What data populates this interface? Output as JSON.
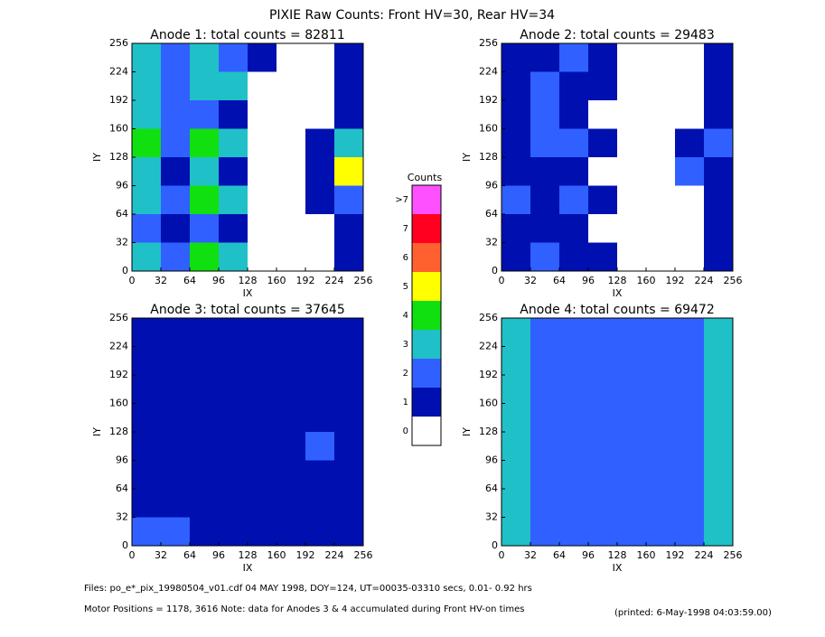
{
  "title": "PIXIE Raw Counts:  Front HV=30, Rear HV=34",
  "colorbar": {
    "label": "Counts",
    "ticks": [
      0,
      1,
      2,
      3,
      4,
      5,
      6,
      7,
      {
        "value": 8,
        "label": ">7"
      }
    ],
    "colors": [
      "#ffffff",
      "#0010b0",
      "#3060ff",
      "#20c0c8",
      "#10e010",
      "#ffff00",
      "#ff6030",
      "#ff0020",
      "#ff50ff"
    ]
  },
  "footer": {
    "files": "Files: po_e*_pix_19980504_v01.cdf    04 MAY 1998, DOY=124, UT=00035-03310 secs,  0.01- 0.92 hrs",
    "motor": "Motor Positions = 1178, 3616   Note: data for Anodes 3 & 4 accumulated during Front HV-on times",
    "printed": "(printed:  6-May-1998 04:03:59.00)"
  },
  "chart_data": [
    {
      "type": "heatmap",
      "title": "Anode 1: total counts = 82811",
      "x_label": "IX",
      "y_label": "IY",
      "xlim": [
        0,
        256
      ],
      "ylim": [
        0,
        256
      ],
      "xticks": [
        0,
        32,
        64,
        96,
        128,
        160,
        192,
        224,
        256
      ],
      "yticks": [
        0,
        32,
        64,
        96,
        128,
        160,
        192,
        224,
        256
      ],
      "z": [
        [
          3,
          2,
          4,
          3,
          0,
          0,
          0,
          1
        ],
        [
          2,
          1,
          2,
          1,
          0,
          0,
          0,
          1
        ],
        [
          3,
          2,
          4,
          3,
          0,
          0,
          1,
          2
        ],
        [
          3,
          1,
          3,
          1,
          0,
          0,
          1,
          5
        ],
        [
          4,
          2,
          4,
          3,
          0,
          0,
          1,
          3
        ],
        [
          3,
          2,
          2,
          1,
          0,
          0,
          0,
          1
        ],
        [
          3,
          2,
          3,
          3,
          0,
          0,
          0,
          1
        ],
        [
          3,
          2,
          3,
          2,
          1,
          0,
          0,
          1
        ]
      ]
    },
    {
      "type": "heatmap",
      "title": "Anode 2: total counts = 29483",
      "x_label": "IX",
      "y_label": "IY",
      "xlim": [
        0,
        256
      ],
      "ylim": [
        0,
        256
      ],
      "xticks": [
        0,
        32,
        64,
        96,
        128,
        160,
        192,
        224,
        256
      ],
      "yticks": [
        0,
        32,
        64,
        96,
        128,
        160,
        192,
        224,
        256
      ],
      "z": [
        [
          1,
          2,
          1,
          1,
          0,
          0,
          0,
          1
        ],
        [
          1,
          1,
          1,
          0,
          0,
          0,
          0,
          1
        ],
        [
          2,
          1,
          2,
          1,
          0,
          0,
          0,
          1
        ],
        [
          1,
          1,
          1,
          0,
          0,
          0,
          2,
          1
        ],
        [
          1,
          2,
          2,
          1,
          0,
          0,
          1,
          2
        ],
        [
          1,
          2,
          1,
          0,
          0,
          0,
          0,
          1
        ],
        [
          1,
          2,
          1,
          1,
          0,
          0,
          0,
          1
        ],
        [
          1,
          1,
          2,
          1,
          0,
          0,
          0,
          1
        ]
      ]
    },
    {
      "type": "heatmap",
      "title": "Anode 3: total counts = 37645",
      "x_label": "IX",
      "y_label": "IY",
      "xlim": [
        0,
        256
      ],
      "ylim": [
        0,
        256
      ],
      "xticks": [
        0,
        32,
        64,
        96,
        128,
        160,
        192,
        224,
        256
      ],
      "yticks": [
        0,
        32,
        64,
        96,
        128,
        160,
        192,
        224,
        256
      ],
      "z": [
        [
          2,
          2,
          1,
          1,
          1,
          1,
          1,
          1
        ],
        [
          1,
          1,
          1,
          1,
          1,
          1,
          1,
          1
        ],
        [
          1,
          1,
          1,
          1,
          1,
          1,
          1,
          1
        ],
        [
          1,
          1,
          1,
          1,
          1,
          1,
          2,
          1
        ],
        [
          1,
          1,
          1,
          1,
          1,
          1,
          1,
          1
        ],
        [
          1,
          1,
          1,
          1,
          1,
          1,
          1,
          1
        ],
        [
          1,
          1,
          1,
          1,
          1,
          1,
          1,
          1
        ],
        [
          1,
          1,
          1,
          1,
          1,
          1,
          1,
          1
        ]
      ]
    },
    {
      "type": "heatmap",
      "title": "Anode 4: total counts = 69472",
      "x_label": "IX",
      "y_label": "IY",
      "xlim": [
        0,
        256
      ],
      "ylim": [
        0,
        256
      ],
      "xticks": [
        0,
        32,
        64,
        96,
        128,
        160,
        192,
        224,
        256
      ],
      "yticks": [
        0,
        32,
        64,
        96,
        128,
        160,
        192,
        224,
        256
      ],
      "z": [
        [
          3,
          2,
          2,
          2,
          2,
          2,
          2,
          3
        ],
        [
          3,
          2,
          2,
          2,
          2,
          2,
          2,
          3
        ],
        [
          3,
          2,
          2,
          2,
          2,
          2,
          2,
          3
        ],
        [
          3,
          2,
          2,
          2,
          2,
          2,
          2,
          3
        ],
        [
          3,
          2,
          2,
          2,
          2,
          2,
          2,
          3
        ],
        [
          3,
          2,
          2,
          2,
          2,
          2,
          2,
          3
        ],
        [
          3,
          2,
          2,
          2,
          2,
          2,
          2,
          3
        ],
        [
          3,
          2,
          2,
          2,
          2,
          2,
          2,
          3
        ]
      ]
    }
  ]
}
